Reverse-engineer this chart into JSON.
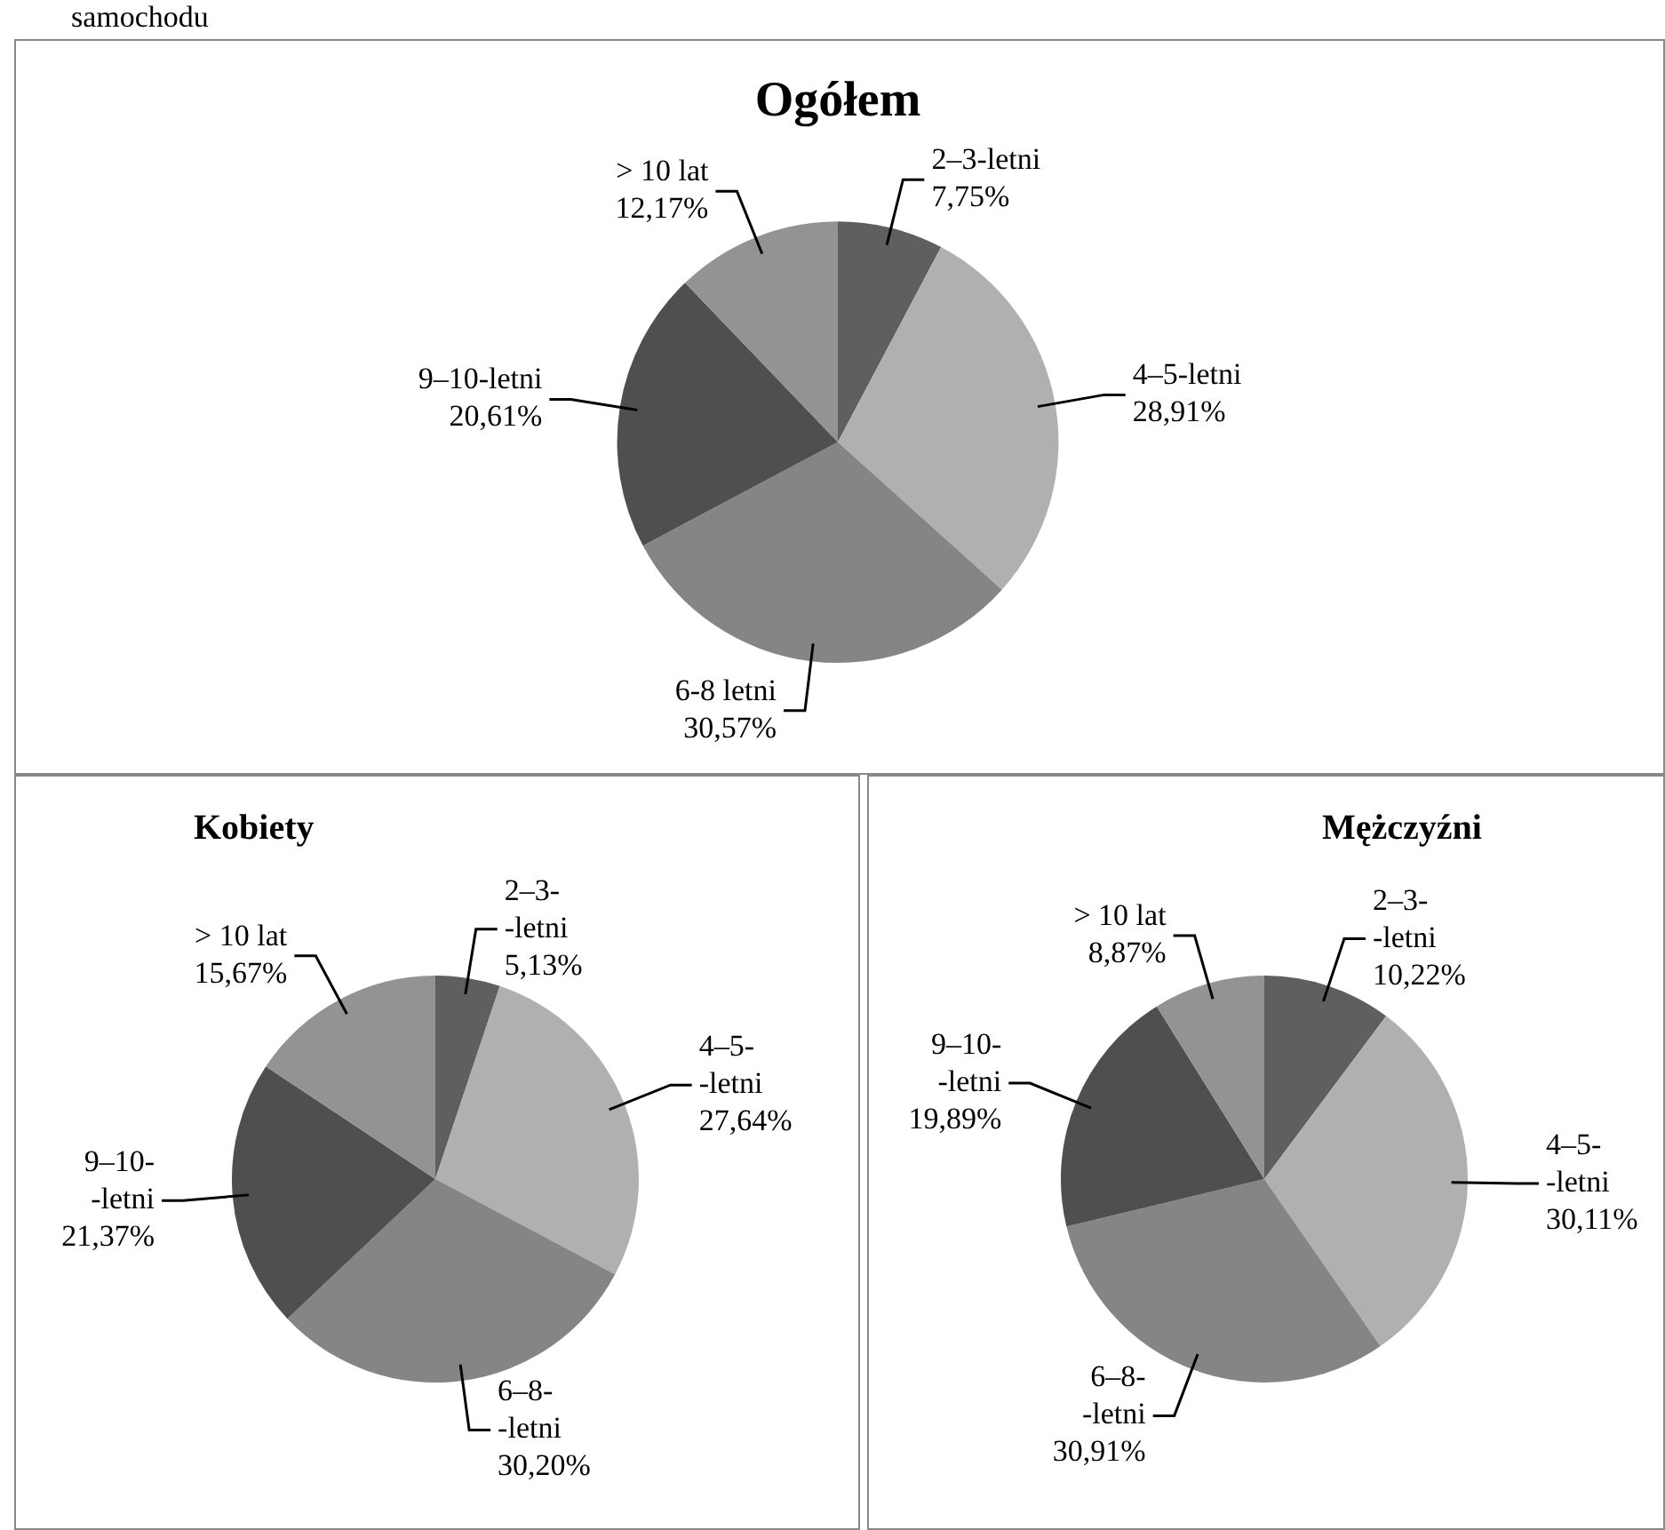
{
  "chart_data": [
    {
      "type": "pie",
      "title": "Ogółem",
      "annotations": [
        "samochodu"
      ],
      "categories": [
        "2–3-letni",
        "4–5-letni",
        "6-8 letni",
        "9–10-letni",
        "> 10 lat"
      ],
      "values": [
        7.75,
        28.91,
        30.57,
        20.61,
        12.17
      ],
      "value_labels": [
        "7,75%",
        "28,91%",
        "30,57%",
        "20,61%",
        "12,17%"
      ],
      "colors": [
        "#5f5f5f",
        "#b0b0b0",
        "#858585",
        "#4f4f4f",
        "#939393"
      ]
    },
    {
      "type": "pie",
      "title": "Kobiety",
      "categories": [
        "2–3-\n-letni",
        "4–5-\n-letni",
        "6–8-\n-letni",
        "9–10-\n-letni",
        "> 10 lat"
      ],
      "values": [
        5.13,
        27.64,
        30.2,
        21.37,
        15.67
      ],
      "value_labels": [
        "5,13%",
        "27,64%",
        "30,20%",
        "21,37%",
        "15,67%"
      ],
      "colors": [
        "#5f5f5f",
        "#b0b0b0",
        "#858585",
        "#4f4f4f",
        "#939393"
      ]
    },
    {
      "type": "pie",
      "title": "Mężczyźni",
      "categories": [
        "2–3-\n-letni",
        "4–5-\n-letni",
        "6–8-\n-letni",
        "9–10-\n-letni",
        "> 10 lat"
      ],
      "values": [
        10.22,
        30.11,
        30.91,
        19.89,
        8.87
      ],
      "value_labels": [
        "10,22%",
        "30,11%",
        "30,91%",
        "19,89%",
        "8,87%"
      ],
      "colors": [
        "#5f5f5f",
        "#b0b0b0",
        "#858585",
        "#4f4f4f",
        "#939393"
      ]
    }
  ]
}
